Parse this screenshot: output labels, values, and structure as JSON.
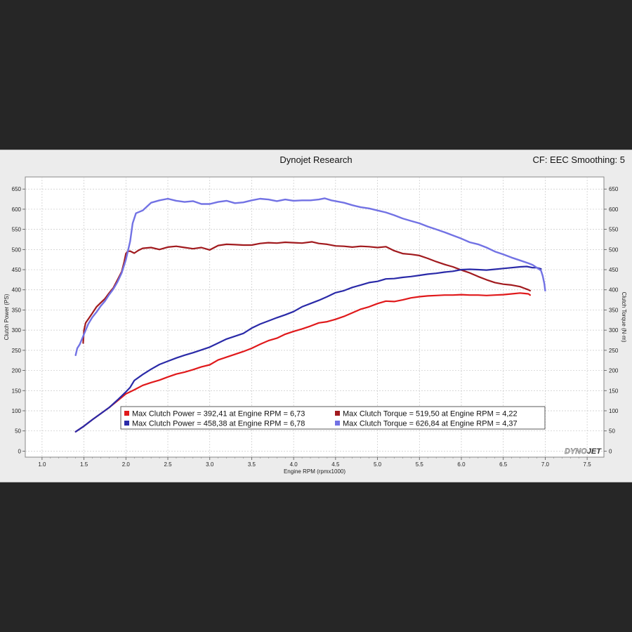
{
  "header": {
    "title": "Dynojet Research",
    "cf_text": "CF: EEC Smoothing: 5"
  },
  "logo": {
    "text_a": "DYNO",
    "text_b": "JET"
  },
  "chart_data": {
    "type": "line",
    "xlabel": "Engine RPM (rpmx1000)",
    "ylabel_left": "Clutch Power (PS)",
    "ylabel_right": "Clutch Torque (N·m)",
    "xlim": [
      0.8,
      7.7
    ],
    "ylim": [
      -15,
      680
    ],
    "x_ticks": [
      "1.0",
      "1.5",
      "2.0",
      "2.5",
      "3.0",
      "3.5",
      "4.0",
      "4.5",
      "5.0",
      "5.5",
      "6.0",
      "6.5",
      "7.0",
      "7.5"
    ],
    "y_ticks": [
      "0",
      "50",
      "100",
      "150",
      "200",
      "250",
      "300",
      "350",
      "400",
      "450",
      "500",
      "550",
      "600",
      "650"
    ],
    "grid": true,
    "legend_position": "bottom-center",
    "series": [
      {
        "legend": "Max Clutch Power = 392,41 at Engine RPM = 6,73",
        "color": "#e0191b",
        "width": 2.2,
        "points": [
          [
            1.4,
            48
          ],
          [
            1.5,
            62
          ],
          [
            1.6,
            78
          ],
          [
            1.7,
            93
          ],
          [
            1.8,
            108
          ],
          [
            1.9,
            125
          ],
          [
            2.0,
            142
          ],
          [
            2.1,
            152
          ],
          [
            2.2,
            163
          ],
          [
            2.3,
            170
          ],
          [
            2.4,
            176
          ],
          [
            2.5,
            184
          ],
          [
            2.6,
            191
          ],
          [
            2.7,
            196
          ],
          [
            2.8,
            202
          ],
          [
            2.9,
            209
          ],
          [
            3.0,
            214
          ],
          [
            3.1,
            226
          ],
          [
            3.2,
            233
          ],
          [
            3.3,
            240
          ],
          [
            3.4,
            247
          ],
          [
            3.5,
            255
          ],
          [
            3.6,
            265
          ],
          [
            3.7,
            274
          ],
          [
            3.8,
            280
          ],
          [
            3.9,
            290
          ],
          [
            4.0,
            297
          ],
          [
            4.1,
            303
          ],
          [
            4.2,
            310
          ],
          [
            4.3,
            318
          ],
          [
            4.4,
            321
          ],
          [
            4.5,
            327
          ],
          [
            4.6,
            334
          ],
          [
            4.7,
            343
          ],
          [
            4.8,
            352
          ],
          [
            4.9,
            358
          ],
          [
            5.0,
            366
          ],
          [
            5.1,
            372
          ],
          [
            5.2,
            371
          ],
          [
            5.3,
            375
          ],
          [
            5.4,
            380
          ],
          [
            5.5,
            383
          ],
          [
            5.6,
            385
          ],
          [
            5.7,
            386
          ],
          [
            5.8,
            387
          ],
          [
            5.9,
            387
          ],
          [
            6.0,
            388
          ],
          [
            6.1,
            387
          ],
          [
            6.2,
            387
          ],
          [
            6.3,
            386
          ],
          [
            6.4,
            387
          ],
          [
            6.5,
            388
          ],
          [
            6.6,
            390
          ],
          [
            6.7,
            392
          ],
          [
            6.75,
            391
          ],
          [
            6.8,
            390
          ],
          [
            6.82,
            387
          ]
        ]
      },
      {
        "legend": "Max Clutch Torque = 519,50 at Engine RPM = 4,22",
        "color": "#a11a1e",
        "width": 2.2,
        "points": [
          [
            1.49,
            268
          ],
          [
            1.5,
            300
          ],
          [
            1.52,
            318
          ],
          [
            1.56,
            330
          ],
          [
            1.6,
            342
          ],
          [
            1.65,
            358
          ],
          [
            1.7,
            368
          ],
          [
            1.75,
            378
          ],
          [
            1.8,
            392
          ],
          [
            1.85,
            405
          ],
          [
            1.9,
            425
          ],
          [
            1.95,
            445
          ],
          [
            1.98,
            470
          ],
          [
            2.0,
            490
          ],
          [
            2.02,
            495
          ],
          [
            2.05,
            496
          ],
          [
            2.1,
            491
          ],
          [
            2.15,
            498
          ],
          [
            2.2,
            503
          ],
          [
            2.3,
            505
          ],
          [
            2.4,
            500
          ],
          [
            2.5,
            506
          ],
          [
            2.6,
            508
          ],
          [
            2.7,
            505
          ],
          [
            2.8,
            502
          ],
          [
            2.9,
            505
          ],
          [
            3.0,
            499
          ],
          [
            3.1,
            510
          ],
          [
            3.2,
            513
          ],
          [
            3.3,
            512
          ],
          [
            3.4,
            511
          ],
          [
            3.5,
            511
          ],
          [
            3.6,
            515
          ],
          [
            3.7,
            517
          ],
          [
            3.8,
            516
          ],
          [
            3.9,
            518
          ],
          [
            4.0,
            517
          ],
          [
            4.1,
            516
          ],
          [
            4.22,
            519
          ],
          [
            4.3,
            515
          ],
          [
            4.4,
            513
          ],
          [
            4.5,
            509
          ],
          [
            4.6,
            508
          ],
          [
            4.7,
            506
          ],
          [
            4.8,
            508
          ],
          [
            4.9,
            507
          ],
          [
            5.0,
            505
          ],
          [
            5.1,
            507
          ],
          [
            5.2,
            497
          ],
          [
            5.3,
            490
          ],
          [
            5.4,
            488
          ],
          [
            5.5,
            485
          ],
          [
            5.6,
            478
          ],
          [
            5.7,
            470
          ],
          [
            5.8,
            463
          ],
          [
            5.9,
            457
          ],
          [
            6.0,
            449
          ],
          [
            6.1,
            442
          ],
          [
            6.2,
            433
          ],
          [
            6.3,
            425
          ],
          [
            6.4,
            418
          ],
          [
            6.5,
            414
          ],
          [
            6.6,
            412
          ],
          [
            6.7,
            408
          ],
          [
            6.75,
            404
          ],
          [
            6.8,
            400
          ],
          [
            6.82,
            398
          ]
        ]
      },
      {
        "legend": "Max Clutch Power = 458,38 at Engine RPM = 6,78",
        "color": "#2a2aa8",
        "width": 2.2,
        "points": [
          [
            1.4,
            48
          ],
          [
            1.5,
            62
          ],
          [
            1.6,
            78
          ],
          [
            1.7,
            93
          ],
          [
            1.8,
            108
          ],
          [
            1.9,
            127
          ],
          [
            2.0,
            147
          ],
          [
            2.05,
            158
          ],
          [
            2.1,
            175
          ],
          [
            2.2,
            190
          ],
          [
            2.3,
            203
          ],
          [
            2.4,
            215
          ],
          [
            2.5,
            223
          ],
          [
            2.6,
            231
          ],
          [
            2.7,
            238
          ],
          [
            2.8,
            244
          ],
          [
            2.9,
            251
          ],
          [
            3.0,
            258
          ],
          [
            3.1,
            268
          ],
          [
            3.2,
            278
          ],
          [
            3.3,
            285
          ],
          [
            3.4,
            292
          ],
          [
            3.5,
            305
          ],
          [
            3.6,
            315
          ],
          [
            3.7,
            323
          ],
          [
            3.8,
            331
          ],
          [
            3.9,
            338
          ],
          [
            4.0,
            346
          ],
          [
            4.1,
            358
          ],
          [
            4.2,
            366
          ],
          [
            4.3,
            374
          ],
          [
            4.4,
            383
          ],
          [
            4.5,
            393
          ],
          [
            4.6,
            398
          ],
          [
            4.7,
            406
          ],
          [
            4.8,
            412
          ],
          [
            4.9,
            418
          ],
          [
            5.0,
            421
          ],
          [
            5.1,
            427
          ],
          [
            5.2,
            428
          ],
          [
            5.3,
            431
          ],
          [
            5.4,
            433
          ],
          [
            5.5,
            436
          ],
          [
            5.6,
            439
          ],
          [
            5.7,
            441
          ],
          [
            5.8,
            444
          ],
          [
            5.9,
            446
          ],
          [
            6.0,
            450
          ],
          [
            6.1,
            451
          ],
          [
            6.2,
            450
          ],
          [
            6.3,
            449
          ],
          [
            6.4,
            451
          ],
          [
            6.5,
            453
          ],
          [
            6.6,
            455
          ],
          [
            6.7,
            457
          ],
          [
            6.78,
            458
          ],
          [
            6.85,
            455
          ],
          [
            6.9,
            455
          ],
          [
            6.95,
            452
          ]
        ]
      },
      {
        "legend": "Max Clutch Torque = 626,84 at Engine RPM = 4,37",
        "color": "#7272e4",
        "width": 2.4,
        "points": [
          [
            1.4,
            238
          ],
          [
            1.42,
            255
          ],
          [
            1.45,
            265
          ],
          [
            1.5,
            290
          ],
          [
            1.55,
            315
          ],
          [
            1.6,
            332
          ],
          [
            1.65,
            345
          ],
          [
            1.7,
            360
          ],
          [
            1.75,
            372
          ],
          [
            1.8,
            388
          ],
          [
            1.85,
            402
          ],
          [
            1.9,
            420
          ],
          [
            1.95,
            442
          ],
          [
            2.0,
            475
          ],
          [
            2.05,
            520
          ],
          [
            2.08,
            565
          ],
          [
            2.12,
            590
          ],
          [
            2.2,
            597
          ],
          [
            2.3,
            616
          ],
          [
            2.4,
            622
          ],
          [
            2.5,
            626
          ],
          [
            2.6,
            621
          ],
          [
            2.7,
            618
          ],
          [
            2.8,
            620
          ],
          [
            2.9,
            613
          ],
          [
            3.0,
            613
          ],
          [
            3.1,
            618
          ],
          [
            3.2,
            621
          ],
          [
            3.3,
            615
          ],
          [
            3.4,
            617
          ],
          [
            3.5,
            622
          ],
          [
            3.6,
            626
          ],
          [
            3.7,
            624
          ],
          [
            3.8,
            620
          ],
          [
            3.9,
            624
          ],
          [
            4.0,
            621
          ],
          [
            4.1,
            622
          ],
          [
            4.2,
            622
          ],
          [
            4.3,
            624
          ],
          [
            4.37,
            627
          ],
          [
            4.45,
            622
          ],
          [
            4.5,
            620
          ],
          [
            4.6,
            616
          ],
          [
            4.7,
            610
          ],
          [
            4.8,
            605
          ],
          [
            4.9,
            602
          ],
          [
            5.0,
            597
          ],
          [
            5.1,
            592
          ],
          [
            5.2,
            585
          ],
          [
            5.3,
            577
          ],
          [
            5.4,
            571
          ],
          [
            5.5,
            565
          ],
          [
            5.6,
            557
          ],
          [
            5.7,
            550
          ],
          [
            5.8,
            543
          ],
          [
            5.9,
            535
          ],
          [
            6.0,
            527
          ],
          [
            6.1,
            518
          ],
          [
            6.2,
            513
          ],
          [
            6.3,
            505
          ],
          [
            6.4,
            495
          ],
          [
            6.5,
            488
          ],
          [
            6.6,
            480
          ],
          [
            6.7,
            473
          ],
          [
            6.8,
            466
          ],
          [
            6.85,
            462
          ],
          [
            6.9,
            455
          ],
          [
            6.95,
            448
          ],
          [
            6.97,
            435
          ],
          [
            6.99,
            415
          ],
          [
            7.0,
            398
          ]
        ]
      }
    ]
  }
}
